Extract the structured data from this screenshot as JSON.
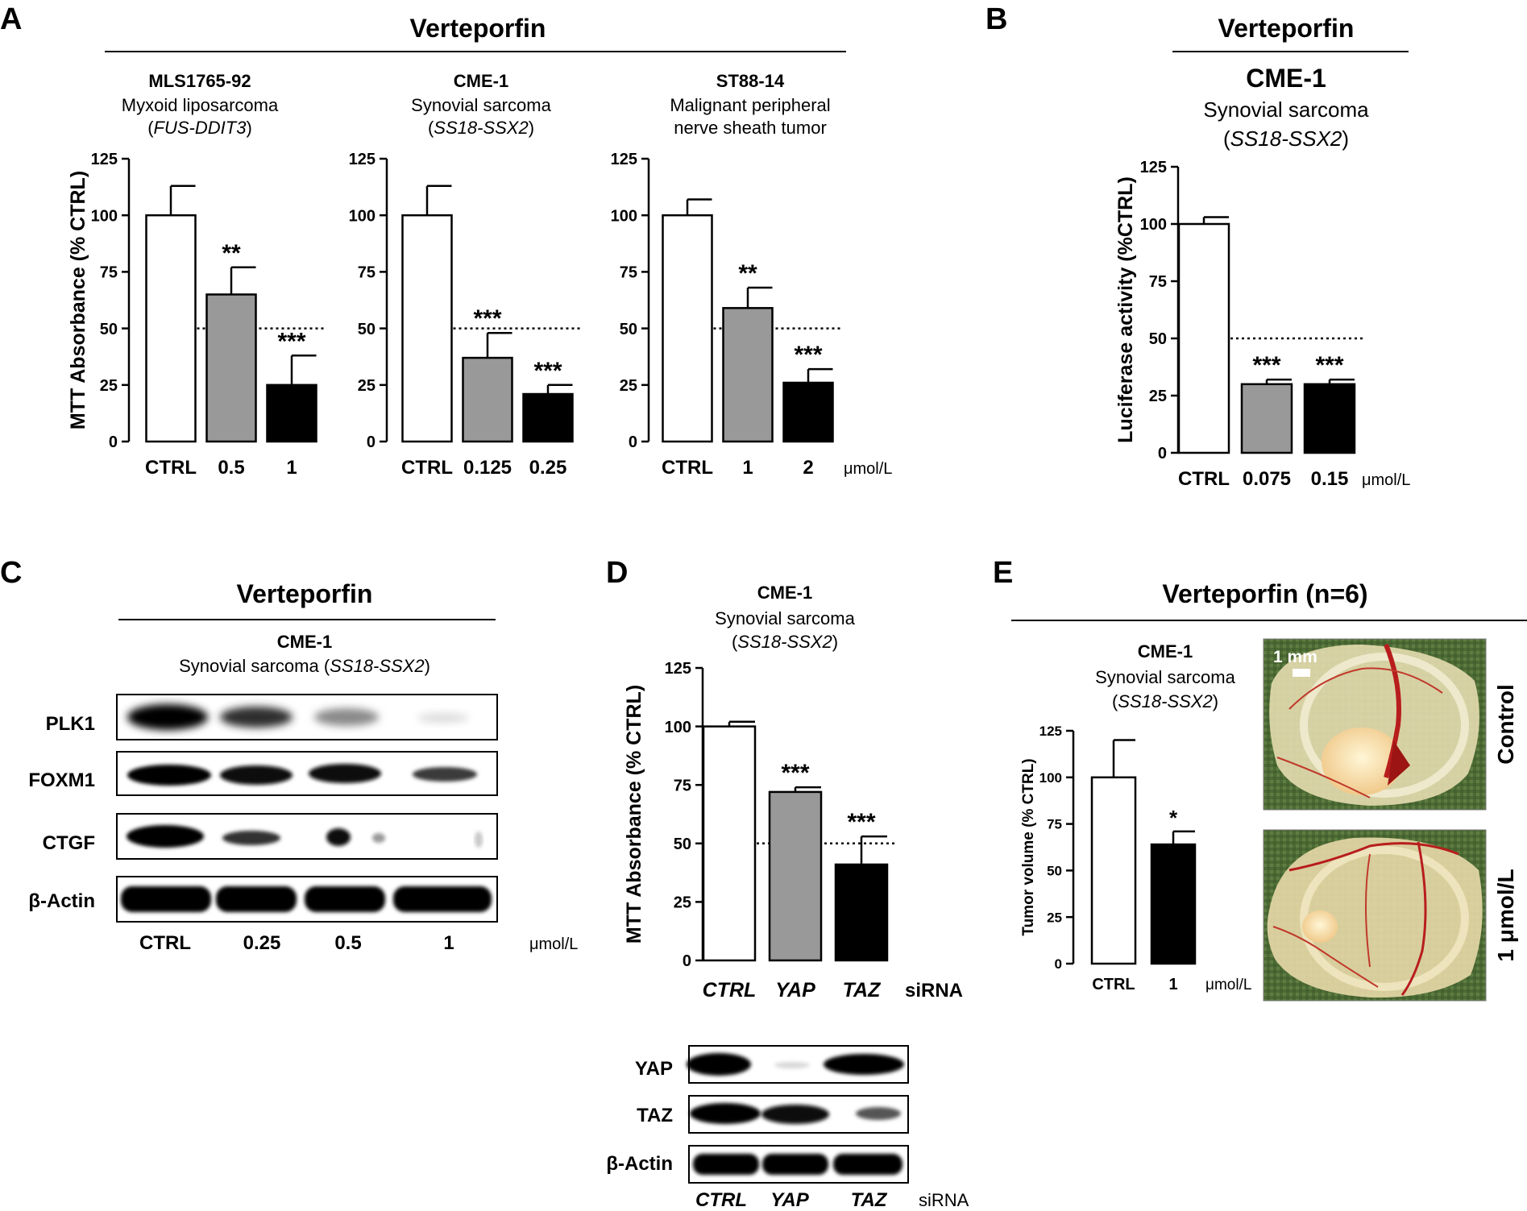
{
  "panels": {
    "A": {
      "letter": "A",
      "header": "Verteporfin",
      "unit": "μmol/L",
      "charts": [
        {
          "cell_line": "MLS1765-92",
          "subtitle": "Myxoid liposarcoma",
          "fusion": "FUS-DDIT3"
        },
        {
          "cell_line": "CME-1",
          "subtitle": "Synovial sarcoma",
          "fusion": "SS18-SSX2"
        },
        {
          "cell_line": "ST88-14",
          "subtitle_line1": "Malignant peripheral",
          "subtitle_line2": "nerve sheath tumor"
        }
      ]
    },
    "B": {
      "letter": "B",
      "header": "Verteporfin",
      "cell_line": "CME-1",
      "subtitle": "Synovial sarcoma",
      "fusion": "SS18-SSX2",
      "unit": "μmol/L"
    },
    "C": {
      "letter": "C",
      "header": "Verteporfin",
      "cell_line": "CME-1",
      "subtitle": "Synovial sarcoma",
      "fusion": "SS18-SSX2",
      "rows": [
        "PLK1",
        "FOXM1",
        "CTGF",
        "β-Actin"
      ],
      "lanes": [
        "CTRL",
        "0.25",
        "0.5",
        "1"
      ],
      "unit": "μmol/L"
    },
    "D": {
      "letter": "D",
      "cell_line": "CME-1",
      "subtitle": "Synovial sarcoma",
      "fusion": "SS18-SSX2",
      "unit": "siRNA",
      "blot_rows": [
        "YAP",
        "TAZ",
        "β-Actin"
      ],
      "blot_lanes": [
        "CTRL",
        "YAP",
        "TAZ"
      ],
      "blot_unit": "siRNA"
    },
    "E": {
      "letter": "E",
      "header": "Verteporfin (n=6)",
      "cell_line": "CME-1",
      "subtitle": "Synovial sarcoma",
      "fusion": "SS18-SSX2",
      "unit": "μmol/L",
      "scale_bar": "1 mm",
      "photo_labels": [
        "Control",
        "1 μmol/L"
      ]
    }
  },
  "chart_data": [
    {
      "id": "A1",
      "type": "bar",
      "ylabel": "MTT Absorbance (% CTRL)",
      "ylim": [
        0,
        125
      ],
      "yticks": [
        0,
        25,
        50,
        75,
        100,
        125
      ],
      "categories": [
        "CTRL",
        "0.5",
        "1"
      ],
      "values": [
        100,
        65,
        25
      ],
      "errors": [
        13,
        12,
        13
      ],
      "significance": [
        "",
        "**",
        "***"
      ],
      "reference_line": 50,
      "colors": [
        "#ffffff",
        "#999999",
        "#000000"
      ]
    },
    {
      "id": "A2",
      "type": "bar",
      "ylabel": "",
      "ylim": [
        0,
        125
      ],
      "yticks": [
        0,
        25,
        50,
        75,
        100,
        125
      ],
      "categories": [
        "CTRL",
        "0.125",
        "0.25"
      ],
      "values": [
        100,
        37,
        21
      ],
      "errors": [
        13,
        11,
        4
      ],
      "significance": [
        "",
        "***",
        "***"
      ],
      "reference_line": 50,
      "colors": [
        "#ffffff",
        "#999999",
        "#000000"
      ]
    },
    {
      "id": "A3",
      "type": "bar",
      "ylabel": "",
      "ylim": [
        0,
        125
      ],
      "yticks": [
        0,
        25,
        50,
        75,
        100,
        125
      ],
      "categories": [
        "CTRL",
        "1",
        "2"
      ],
      "values": [
        100,
        59,
        26
      ],
      "errors": [
        7,
        9,
        6
      ],
      "significance": [
        "",
        "**",
        "***"
      ],
      "reference_line": 50,
      "colors": [
        "#ffffff",
        "#999999",
        "#000000"
      ]
    },
    {
      "id": "B",
      "type": "bar",
      "ylabel": "Luciferase activity (%CTRL)",
      "ylim": [
        0,
        125
      ],
      "yticks": [
        0,
        25,
        50,
        75,
        100,
        125
      ],
      "categories": [
        "CTRL",
        "0.075",
        "0.15"
      ],
      "values": [
        100,
        30,
        30
      ],
      "errors": [
        3,
        2,
        2
      ],
      "significance": [
        "",
        "***",
        "***"
      ],
      "reference_line": 50,
      "colors": [
        "#ffffff",
        "#999999",
        "#000000"
      ]
    },
    {
      "id": "D",
      "type": "bar",
      "ylabel": "MTT Absorbance (% CTRL)",
      "ylim": [
        0,
        125
      ],
      "yticks": [
        0,
        25,
        50,
        75,
        100,
        125
      ],
      "categories": [
        "CTRL",
        "YAP",
        "TAZ"
      ],
      "values": [
        100,
        72,
        41
      ],
      "errors": [
        2,
        2,
        12
      ],
      "significance": [
        "",
        "***",
        "***"
      ],
      "reference_line": 50,
      "colors": [
        "#ffffff",
        "#999999",
        "#000000"
      ]
    },
    {
      "id": "E",
      "type": "bar",
      "ylabel": "Tumor volume (% CTRL)",
      "ylim": [
        0,
        125
      ],
      "yticks": [
        0,
        25,
        50,
        75,
        100,
        125
      ],
      "categories": [
        "CTRL",
        "1"
      ],
      "values": [
        100,
        64
      ],
      "errors": [
        20,
        7
      ],
      "significance": [
        "",
        "*"
      ],
      "reference_line": null,
      "colors": [
        "#ffffff",
        "#000000"
      ]
    }
  ]
}
